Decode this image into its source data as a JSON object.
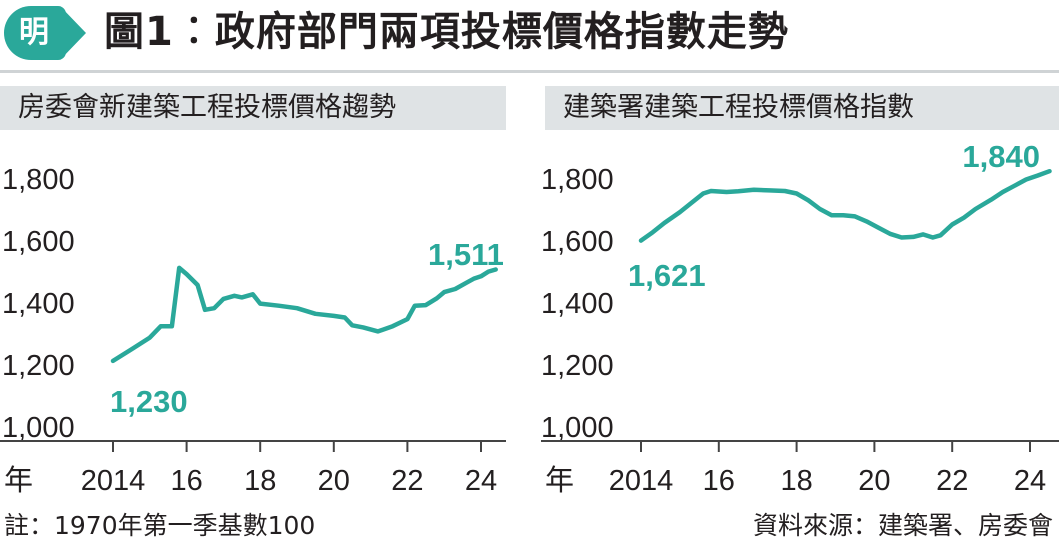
{
  "header": {
    "logo": "明",
    "title": "圖1︰政府部門兩項投標價格指數走勢"
  },
  "colors": {
    "accent": "#2aa89a",
    "panel_bg": "#dfe3e5",
    "text": "#231f20",
    "axis": "#444444"
  },
  "footnote": "註：1970年第一季基數100",
  "source": "資料來源：建築署、房委會",
  "chart_data": [
    {
      "type": "line",
      "title": "房委會新建築工程投標價格趨勢",
      "xlabel": "年",
      "x_ticks": [
        "2014",
        "16",
        "18",
        "20",
        "22",
        "24"
      ],
      "y_ticks": [
        "1,000",
        "1,200",
        "1,400",
        "1,600",
        "1,800"
      ],
      "ylim": [
        1000,
        1800
      ],
      "xlim": [
        2013.5,
        2024.5
      ],
      "grid": false,
      "annotations": {
        "start": "1,230",
        "end": "1,511"
      },
      "series": [
        {
          "values": [
            [
              2014.0,
              1210
            ],
            [
              2014.5,
              1247
            ],
            [
              2015.0,
              1285
            ],
            [
              2015.3,
              1322
            ],
            [
              2015.6,
              1322
            ],
            [
              2015.8,
              1510
            ],
            [
              2016.0,
              1490
            ],
            [
              2016.3,
              1455
            ],
            [
              2016.5,
              1375
            ],
            [
              2016.75,
              1380
            ],
            [
              2017.0,
              1410
            ],
            [
              2017.3,
              1420
            ],
            [
              2017.5,
              1415
            ],
            [
              2017.8,
              1425
            ],
            [
              2018.0,
              1395
            ],
            [
              2018.5,
              1388
            ],
            [
              2019.0,
              1380
            ],
            [
              2019.5,
              1362
            ],
            [
              2020.0,
              1355
            ],
            [
              2020.3,
              1350
            ],
            [
              2020.5,
              1325
            ],
            [
              2020.8,
              1318
            ],
            [
              2021.2,
              1305
            ],
            [
              2021.6,
              1322
            ],
            [
              2022.0,
              1345
            ],
            [
              2022.2,
              1388
            ],
            [
              2022.5,
              1390
            ],
            [
              2022.8,
              1412
            ],
            [
              2023.0,
              1432
            ],
            [
              2023.3,
              1442
            ],
            [
              2023.6,
              1462
            ],
            [
              2023.8,
              1475
            ],
            [
              2024.0,
              1483
            ],
            [
              2024.2,
              1498
            ],
            [
              2024.4,
              1505
            ]
          ]
        }
      ]
    },
    {
      "type": "line",
      "title": "建築署建築工程投標價格指數",
      "xlabel": "年",
      "x_ticks": [
        "2014",
        "16",
        "18",
        "20",
        "22",
        "24"
      ],
      "y_ticks": [
        "1,000",
        "1,200",
        "1,400",
        "1,600",
        "1,800"
      ],
      "ylim": [
        1000,
        1800
      ],
      "xlim": [
        2013.5,
        2024.5
      ],
      "grid": false,
      "annotations": {
        "start": "1,621",
        "end": "1,840"
      },
      "series": [
        {
          "values": [
            [
              2014.0,
              1598
            ],
            [
              2014.3,
              1625
            ],
            [
              2014.6,
              1655
            ],
            [
              2015.0,
              1690
            ],
            [
              2015.3,
              1720
            ],
            [
              2015.6,
              1750
            ],
            [
              2015.8,
              1758
            ],
            [
              2016.2,
              1755
            ],
            [
              2016.5,
              1757
            ],
            [
              2016.9,
              1762
            ],
            [
              2017.3,
              1760
            ],
            [
              2017.7,
              1758
            ],
            [
              2018.0,
              1750
            ],
            [
              2018.3,
              1728
            ],
            [
              2018.6,
              1700
            ],
            [
              2018.9,
              1680
            ],
            [
              2019.2,
              1680
            ],
            [
              2019.5,
              1676
            ],
            [
              2019.8,
              1660
            ],
            [
              2020.1,
              1640
            ],
            [
              2020.4,
              1620
            ],
            [
              2020.7,
              1608
            ],
            [
              2021.0,
              1610
            ],
            [
              2021.25,
              1618
            ],
            [
              2021.5,
              1608
            ],
            [
              2021.7,
              1615
            ],
            [
              2022.0,
              1650
            ],
            [
              2022.3,
              1672
            ],
            [
              2022.6,
              1700
            ],
            [
              2023.0,
              1730
            ],
            [
              2023.3,
              1755
            ],
            [
              2023.6,
              1775
            ],
            [
              2023.9,
              1795
            ],
            [
              2024.2,
              1808
            ],
            [
              2024.5,
              1822
            ]
          ]
        }
      ]
    }
  ]
}
